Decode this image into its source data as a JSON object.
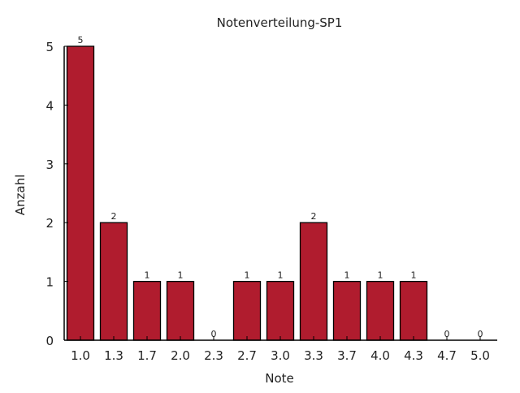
{
  "chart_data": {
    "type": "bar",
    "title": "Notenverteilung-SP1",
    "xlabel": "Note",
    "ylabel": "Anzahl",
    "categories": [
      "1.0",
      "1.3",
      "1.7",
      "2.0",
      "2.3",
      "2.7",
      "3.0",
      "3.3",
      "3.7",
      "4.0",
      "4.3",
      "4.7",
      "5.0"
    ],
    "values": [
      5,
      2,
      1,
      1,
      0,
      1,
      1,
      2,
      1,
      1,
      1,
      0,
      0
    ],
    "yticks": [
      0,
      1,
      2,
      3,
      4,
      5
    ],
    "ylim": [
      0,
      5
    ],
    "grid": false,
    "bar_color": "#b01c2e"
  }
}
